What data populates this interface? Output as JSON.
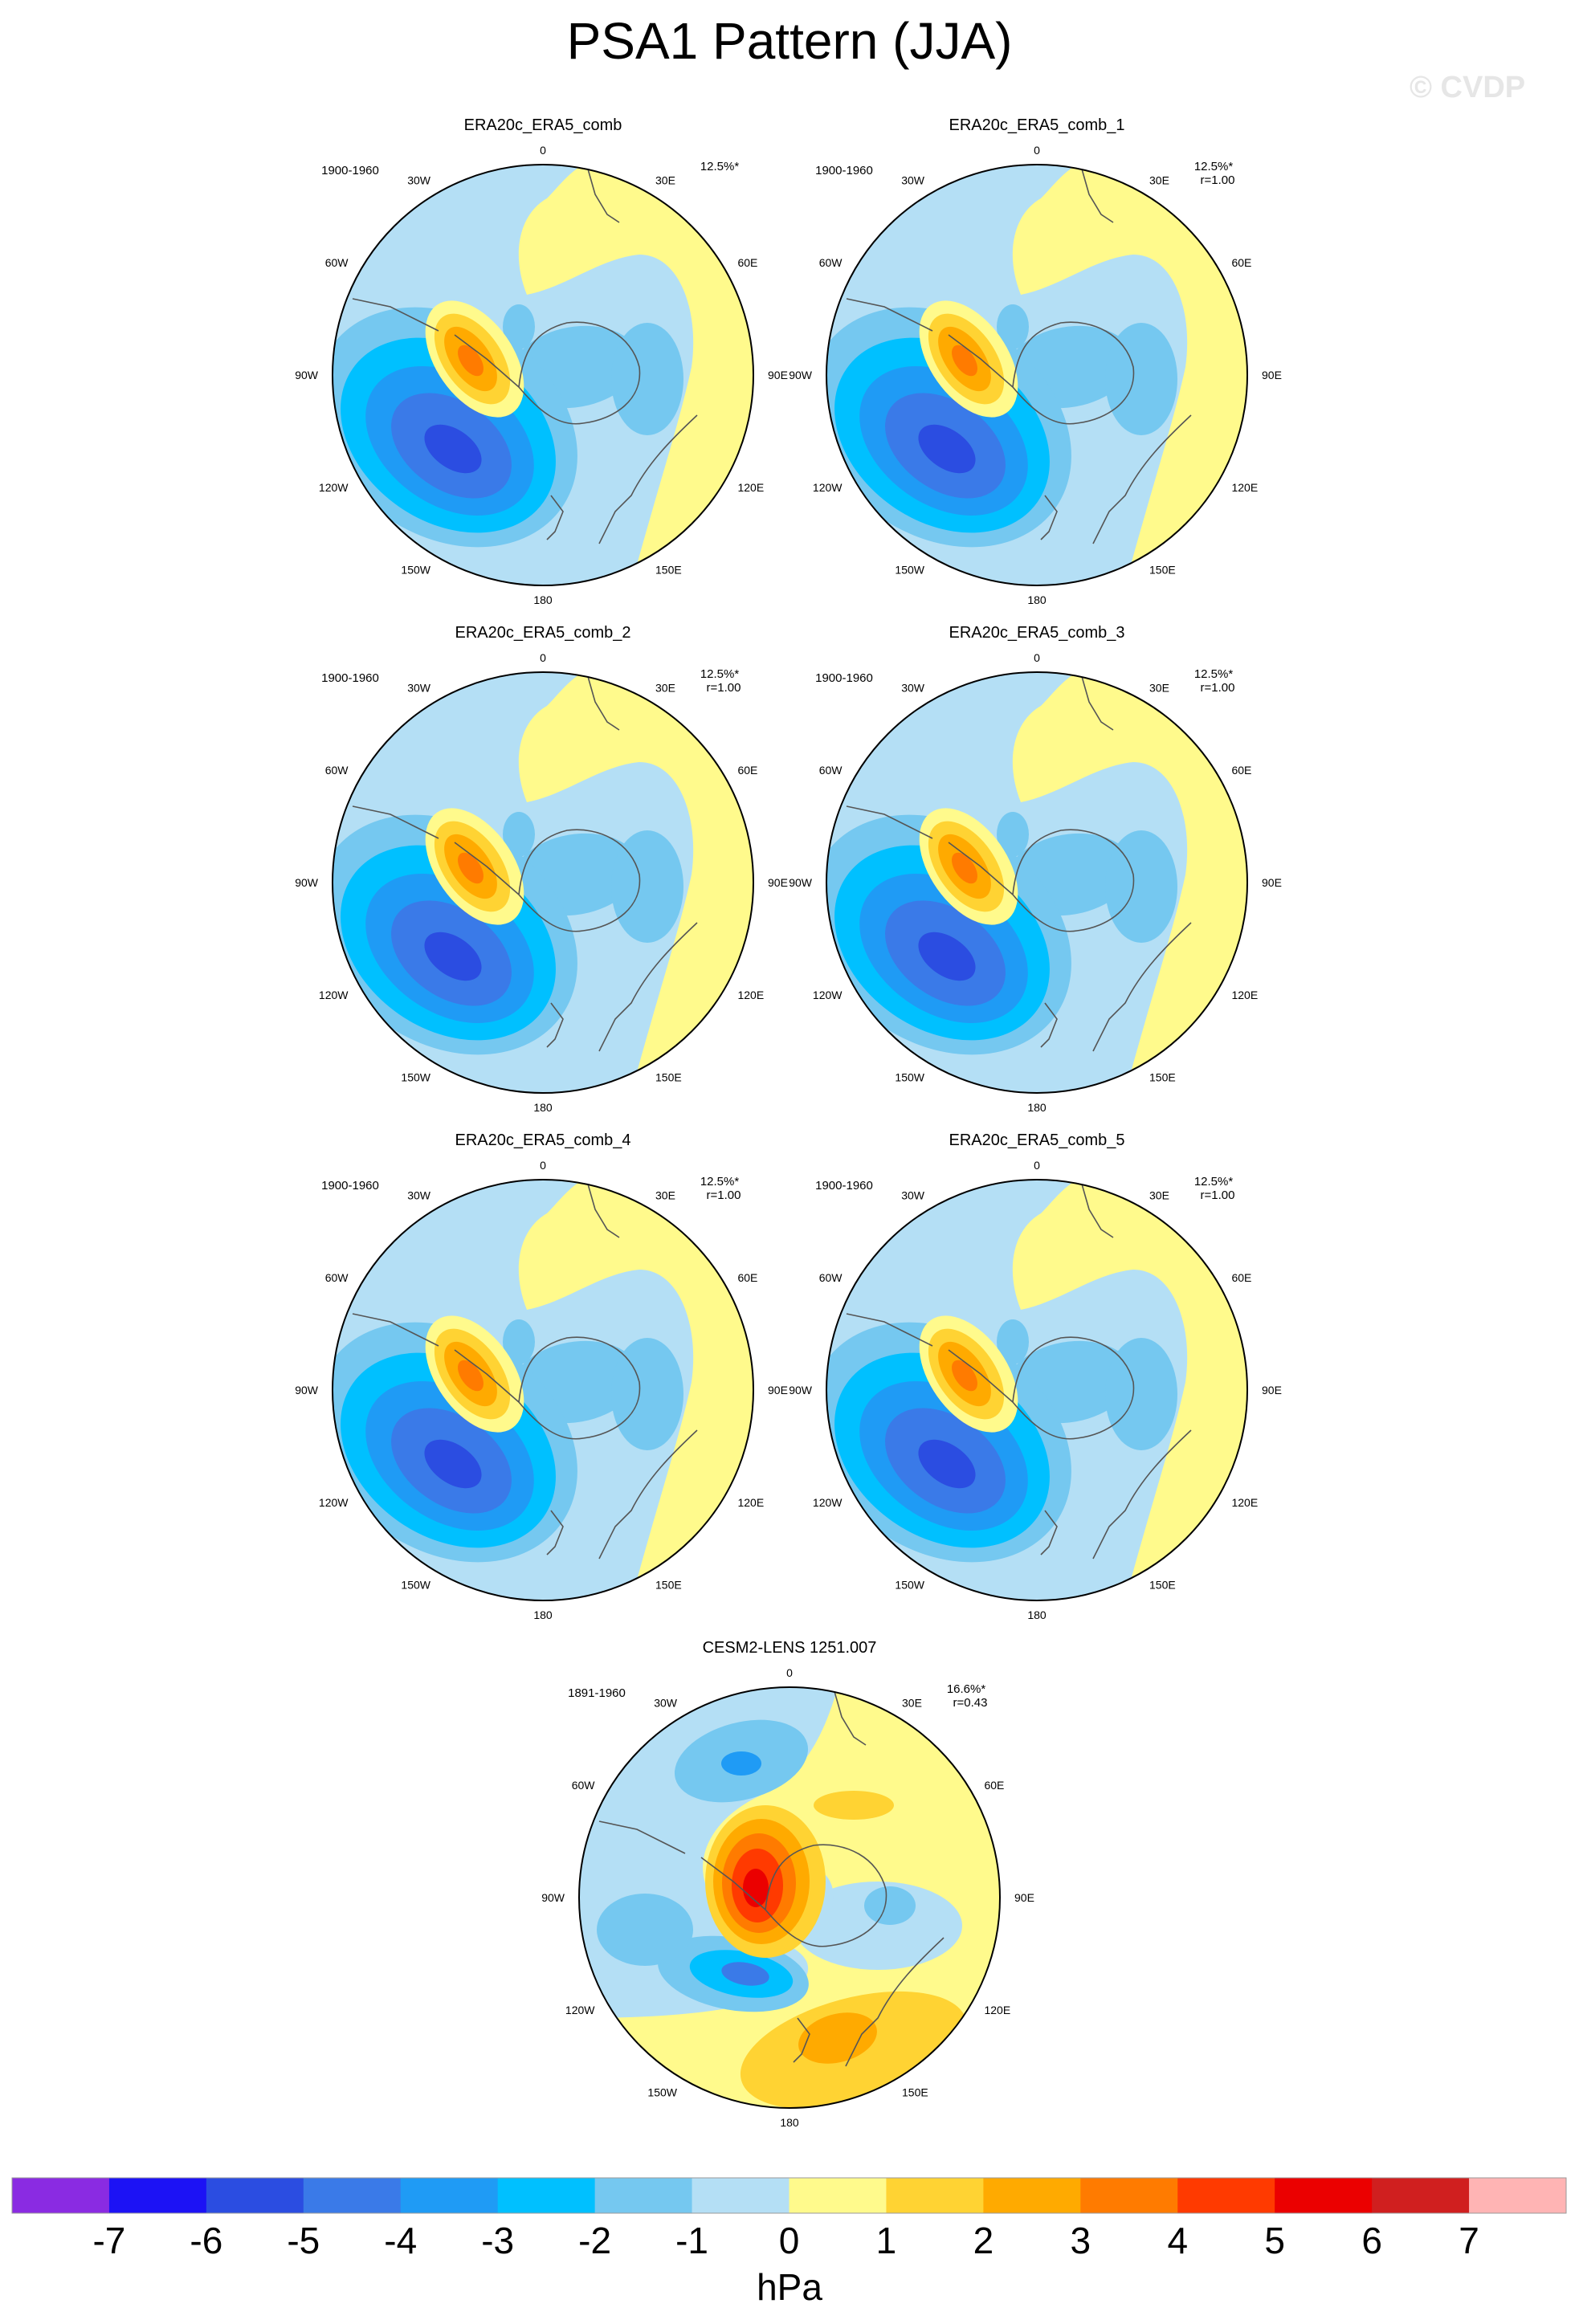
{
  "figure": {
    "title": "PSA1 Pattern (JJA)",
    "watermark": "© CVDP",
    "units": "hPa"
  },
  "panels": [
    {
      "title": "ERA20c_ERA5_comb",
      "period": "1900-1960",
      "pct": "12.5%*",
      "r": "",
      "type": "obs"
    },
    {
      "title": "ERA20c_ERA5_comb_1",
      "period": "1900-1960",
      "pct": "12.5%*",
      "r": "r=1.00",
      "type": "obs"
    },
    {
      "title": "ERA20c_ERA5_comb_2",
      "period": "1900-1960",
      "pct": "12.5%*",
      "r": "r=1.00",
      "type": "obs"
    },
    {
      "title": "ERA20c_ERA5_comb_3",
      "period": "1900-1960",
      "pct": "12.5%*",
      "r": "r=1.00",
      "type": "obs"
    },
    {
      "title": "ERA20c_ERA5_comb_4",
      "period": "1900-1960",
      "pct": "12.5%*",
      "r": "r=1.00",
      "type": "obs"
    },
    {
      "title": "ERA20c_ERA5_comb_5",
      "period": "1900-1960",
      "pct": "12.5%*",
      "r": "r=1.00",
      "type": "obs"
    },
    {
      "title": "CESM2-LENS 1251.007",
      "period": "1891-1960",
      "pct": "16.6%*",
      "r": "r=0.43",
      "type": "model"
    }
  ],
  "lon_labels": [
    "0",
    "30E",
    "60E",
    "90E",
    "120E",
    "150E",
    "180",
    "150W",
    "120W",
    "90W",
    "60W",
    "30W"
  ],
  "colorbar": {
    "ticks": [
      "-7",
      "-6",
      "-5",
      "-4",
      "-3",
      "-2",
      "-1",
      "0",
      "1",
      "2",
      "3",
      "4",
      "5",
      "6",
      "7"
    ],
    "colors": [
      "#8a2be2",
      "#1c12f5",
      "#2b4de1",
      "#3a7ae8",
      "#1f9bf5",
      "#00c0ff",
      "#75c8f0",
      "#b4dff5",
      "#fffa8c",
      "#ffd333",
      "#ffaa00",
      "#ff7b00",
      "#ff3a00",
      "#eb0000",
      "#d01f1f",
      "#ffb4b4"
    ]
  }
}
